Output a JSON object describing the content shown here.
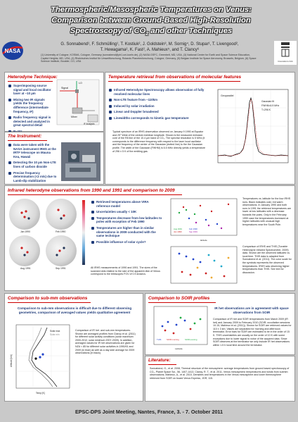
{
  "header": {
    "title_line1": "Thermospheric/Mesospheric Temperatures on Venus:",
    "title_line2": "Comparison between Ground-Based High-Resolution",
    "title_line3": "Spectroscopy of CO",
    "title_line3_sub": "2",
    "title_line3_end": " and other Techniques",
    "authors_line1": "G. Sonnabend¹, F. Schmülling¹, T. Kostiuk², J. Goldstein³, M. Sornig⁴, D. Stupar¹, T. Livengood²,",
    "authors_line2": "T. Hewagama², K. Fast², A. Mahieux⁵, and T. Clancy⁶",
    "affiliations": "(1) University of Cologne, KOSMA, Cologne, Germany (sonnabend@ph1.uni-koeln.de), (2) NASA GSFC, Greenbelt, MD, USA, (3) National Center for Earth and Space Science Education, Capitol Heights, MD, USA, (4) Rheinisches Institut für Umweltforschung, Rolands Planetenforschung, Cologne, Germany, (5) Belgian Institute for Space Aeronomy, Brussels, Belgium, (6) Space Science Institute, Boulder, CO, USA",
    "logo_left": "NASA",
    "logo_right": "Universität zu Köln"
  },
  "heterodyne": {
    "title": "Heterodyne Technique:",
    "bullets": [
      "Superimposing source signal and local oscillator laser at ~10 µm",
      "Mixing two IR signals yields the frequency difference (intermediate frequency, IF)",
      "Radio frequency signal is detected and analyzed in great spectral detail",
      "R~10⁷"
    ],
    "diagram_labels": [
      "Signal",
      "LO",
      "Mixer",
      "IF Analysis"
    ]
  },
  "instrument": {
    "title": "The Instrument:",
    "bullets": [
      "Data were taken with the NASA instrument IRHS at the IRTF telescope on Mauna Kea, Hawaii",
      "Detecting the 10 µm Non-LTE lines of carbon dioxide",
      "Precise frequency determination (<2 m/s) due to Lamb-dip stabilization"
    ]
  },
  "retrieval": {
    "title": "Temperature retrieval from observations of molecular features",
    "bullets": [
      "Infrared Heterodyne Spectroscopy allows observation of fully resolved molecular lines",
      "Non-LTE feature from ~110km",
      "Induced by solar irradiation",
      "Linear and Doppler broadened",
      "Linewidths corresponds to kinetic gas temperature"
    ],
    "caption": "Typical spectrum of an IRHS observation observed on January 9 1990 at Equator and 25° West of the central meridian longitude. Shown is the measured emission core of the R8 line of the 10.4 µm band of CO₂. The spectral resolution is 5 MHz (it corresponds to the difference frequency with respect to the laser local oscillator and the frequency of the center of the Gaussian (dotted line) to the the Gaussian profile. The width of the Gaussian (FWHM) is 6.5 MHz directly yields a temperature of 296 ± 5 K of the emitting gas.",
    "plot_labels": [
      "Geoparallel",
      "Gaussian fit",
      "FWHM=6.5 MHz",
      "T=296 K"
    ]
  },
  "infrared_obs": {
    "title": "Infrared heterodyne observations from 1990 and 1991 and comparison to 2009",
    "globe_labels": [
      "Jan 1990",
      "Feb 1990",
      "Aug 1991",
      "Sep 1991"
    ],
    "bullets": [
      "Retrieved temperatures above VIRA reference model",
      "Uncertainties usually < 10K",
      "Temperatures decrease from low latitudes to poles with exception of Feb 1990",
      "Temperatures are higher than in similar observations in 2009 conducted with the same technique",
      "Possible influence of solar cycle?"
    ],
    "caption": "All IRHS measurements of 1990 and 1991. The sizes of the scanned dots relative to the size of the apparent disk of Venus correspond to the telescopes FOV of 0.9 arcsecs.",
    "plot_legend": [
      "Aug 1991",
      "Jan 1990",
      "Feb 1990",
      "Sep 1991"
    ],
    "plot_xlabel": "latitude",
    "side_text_1": "Temperatures vs. latitude for the four IRHS runs. Black indicates cold, red warm observations. In January 1990 and both runs in 1991 the retrieved temperatures are lower at low latitudes with a decrease towards the poles. Only in the February 1990 case the temperatures increased at higher latitudes with unusual high temperatures near the South Pole.",
    "side_text_2": "Comparison of IRHS and THIS (Tunable Heterodyne Infrared Spectrometer, 2009) data. Shown are the observed latitudes vs. local time. THIS data is adapted from Sonnabend et al. (2011). The color scale for the symbols represents the observed temperatures. IRHS was observing higher temperatures than THIS. See text for discussion."
  },
  "submm": {
    "title": "Comparison to sub-mm observations",
    "intro": "Comparison to sub-mm observations is difficult due to different observing geometries, comparison of averaged values yields qualitative agreement",
    "caption": "Comparison of IR het. and sub-mm temperatures. Shown are averaged profiles from Clancy et al. (2011) for different solar activity conditions (solar maximum 2000-2012, solar minimum 2007-2009). In addition, averaged values for IR het observations are given for NZA < 85 for different solar activities in 1990/91 and 2009 (in blue) as well as a day side average for 2009 observations (in black).",
    "plot_labels": [
      "Solar max",
      "Solar min",
      "Temp [K]",
      "Altitude [km]"
    ]
  },
  "soir": {
    "title": "Comparison to SOIR profiles",
    "intro": "IR het observations are in agreement with space observations from SOIR",
    "caption": "Comparison of IR het and SOIR temperatures from March 2009 (IR het) and January 2009 to February 2010 (SOIR; occultation sessions 10-15, Mahieux et al. (2011)). Shown for SOIR are retrieved values for 110 ± 3 km. Values are separated for morning and afternoon terminator. Error bars for SOIR are estimated to be in the order of 15 K. THIS uncertainties are usually on the order of 10 K with some exceptions due to lower signal to noise of the acquired data. Since SOIR observes at the terminator we only include IR het observations within 1.5 h local time around the terminator.",
    "plot_labels": [
      "THIS",
      "SOIR morning",
      "SOIR evening",
      "Latitude"
    ]
  },
  "literature": {
    "title": "Literature:",
    "refs": "Sonnabend, G., et al. 2008, Thermal structure of the mesosphere: average temperatures from ground based spectroscopy of CO₂, Planet Space Sci., 56, 1407-1413. Clancy, R. T., et al. 2011, Venus mesospheric temperatures and winds from submm observations. Mahieux, A., et al. 2010, Densities and temperatures in the Venus mesosphere and lower thermosphere retrieved from SOIR on board Venus Express, JGR, 115."
  },
  "footer": {
    "text": "EPSC-DPS Joint Meeting, Nantes, France, 3. - 7. October 2011"
  }
}
